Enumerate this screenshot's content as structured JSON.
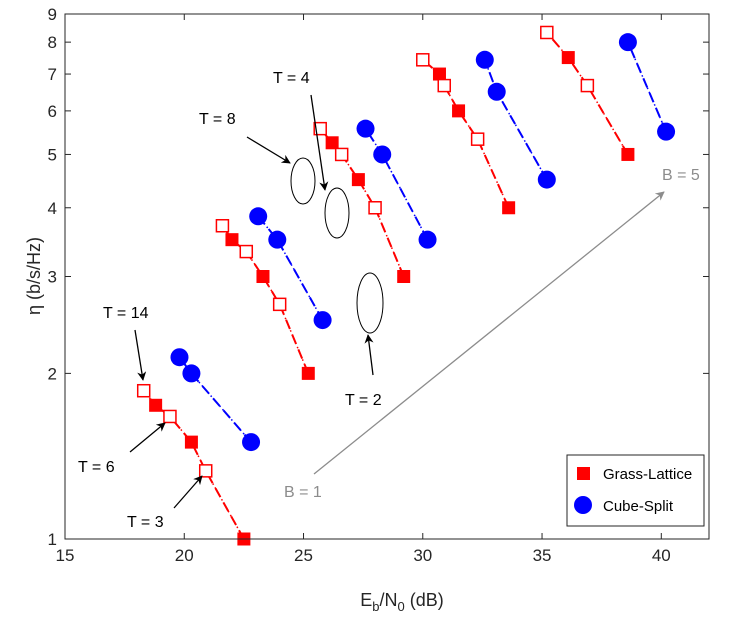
{
  "chart_data": {
    "type": "line",
    "xlabel": "E_b/N_0 (dB)",
    "ylabel": "η (b/s/Hz)",
    "xlim": [
      15,
      42
    ],
    "ylim": [
      1,
      9
    ],
    "y_scale": "log",
    "grid": false,
    "x_ticks": [
      15,
      20,
      25,
      30,
      35,
      40
    ],
    "y_ticks": [
      1,
      2,
      3,
      4,
      5,
      6,
      7,
      8,
      9
    ],
    "legend": {
      "placement": "bottom-right",
      "entries": [
        "Grass-Lattice",
        "Cube-Split"
      ]
    },
    "colors": {
      "grass_lattice": "#ff0000",
      "cube_split": "#0000ff",
      "annotation_gray": "#8c8c8c"
    },
    "series": [
      {
        "name": "Grass-Lattice",
        "marker": "filled-square",
        "color": "#ff0000",
        "line": "dashed",
        "x": [
          22.5,
          25.2,
          29.2,
          33.6,
          38.6
        ],
        "y": [
          1.0,
          2.0,
          3.0,
          4.0,
          5.0
        ]
      },
      {
        "name": "Grass-Lattice",
        "marker": "filled-square",
        "color": "#ff0000",
        "line": "dashed",
        "x": [
          20.3,
          23.3,
          27.3,
          31.5,
          36.1
        ],
        "y": [
          1.5,
          3.0,
          4.5,
          6.0,
          7.5
        ]
      },
      {
        "name": "Grass-Lattice",
        "marker": "filled-square",
        "color": "#ff0000",
        "line": "dashed",
        "x": [
          18.8,
          22.0,
          26.2,
          30.7
        ],
        "y": [
          1.75,
          3.5,
          5.25,
          7.0
        ]
      },
      {
        "name": "Grass-Lattice",
        "marker": "open-square",
        "color": "#ff0000",
        "line": "dashed",
        "x": [
          20.9,
          24.0,
          28.0,
          32.3,
          36.9
        ],
        "y": [
          1.33,
          2.67,
          4.0,
          5.33,
          6.67
        ]
      },
      {
        "name": "Grass-Lattice",
        "marker": "open-square",
        "color": "#ff0000",
        "line": "dashed",
        "x": [
          19.4,
          22.6,
          26.6,
          30.9,
          35.2
        ],
        "y": [
          1.67,
          3.33,
          5.0,
          6.67,
          8.33
        ]
      },
      {
        "name": "Grass-Lattice",
        "marker": "open-square",
        "color": "#ff0000",
        "line": "dashed",
        "x": [
          18.3,
          21.6,
          25.7,
          30.0
        ],
        "y": [
          1.86,
          3.71,
          5.57,
          7.43
        ]
      },
      {
        "name": "Cube-Split",
        "marker": "filled-circle",
        "color": "#0000ff",
        "line": "dashed",
        "x": [
          22.8,
          25.8,
          30.2,
          35.2,
          40.2
        ],
        "y": [
          1.5,
          2.5,
          3.5,
          4.5,
          5.5
        ]
      },
      {
        "name": "Cube-Split",
        "marker": "filled-circle",
        "color": "#0000ff",
        "line": "dashed",
        "x": [
          20.3,
          23.9,
          28.3,
          33.1,
          38.6
        ],
        "y": [
          2.0,
          3.5,
          5.0,
          6.5,
          8.0
        ]
      },
      {
        "name": "Cube-Split",
        "marker": "filled-circle",
        "color": "#0000ff",
        "line": "dashed",
        "x": [
          19.8,
          23.1,
          27.6,
          32.6
        ],
        "y": [
          2.14,
          3.86,
          5.57,
          7.43
        ]
      }
    ],
    "annotations": [
      {
        "text": "T = 14"
      },
      {
        "text": "T = 6"
      },
      {
        "text": "T = 3"
      },
      {
        "text": "T = 8"
      },
      {
        "text": "T = 4"
      },
      {
        "text": "T = 2"
      },
      {
        "text": "B = 1"
      },
      {
        "text": "B = 5"
      }
    ]
  }
}
